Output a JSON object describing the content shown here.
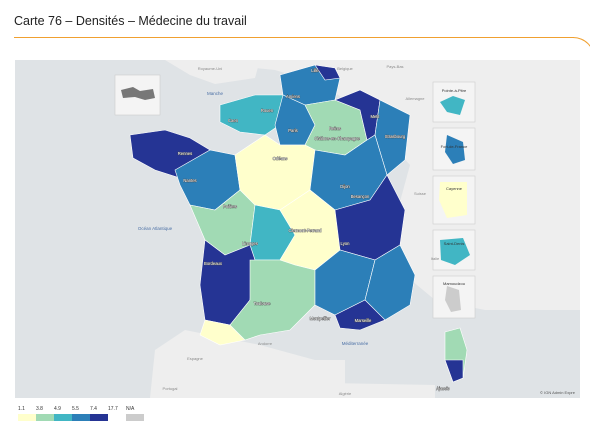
{
  "page": {
    "title": "Carte 76 – Densités – Médecine du travail"
  },
  "map": {
    "copyright": "© IGN Admin Expre",
    "seas": {
      "manche": "Manche",
      "ocean": "Océan Atlantique",
      "med": "Méditerranée"
    },
    "countries": [
      "Royaume-Uni",
      "Belgique",
      "Pays-Bas",
      "Allemagne",
      "Suisse",
      "Italie",
      "Espagne",
      "Andorre",
      "Portugal",
      "Algérie"
    ],
    "cities": [
      "Lille",
      "Amiens",
      "Rouen",
      "Caen",
      "Paris",
      "Reims",
      "Châlons-en-Champagne",
      "Metz",
      "Strasbourg",
      "Rennes",
      "Nantes",
      "Orléans",
      "Dijon",
      "Besançon",
      "Poitiers",
      "Limoges",
      "Clermont-Ferrand",
      "Lyon",
      "Bordeaux",
      "Toulouse",
      "Montpellier",
      "Marseille",
      "Ajaccio"
    ],
    "insets": [
      {
        "label": "Pointe-à-Pitre"
      },
      {
        "label": "Fort-de-France"
      },
      {
        "label": "Cayenne"
      },
      {
        "label": "Saint-Denis"
      },
      {
        "label": "Mamoudzou"
      }
    ],
    "palette": {
      "c1": "#ffffcc",
      "c2": "#a1dab4",
      "c3": "#41b6c4",
      "c4": "#2c7fb8",
      "c5": "#253494",
      "na": "#cccccc",
      "background": "#dfe3e6",
      "land": "#eeeeee"
    }
  },
  "legend": {
    "labels": [
      "1.1",
      "3.8",
      "4.9",
      "5.5",
      "7.4",
      "17.7",
      "N/A"
    ],
    "colors": [
      "#ffffcc",
      "#a1dab4",
      "#41b6c4",
      "#2c7fb8",
      "#253494",
      "#cccccc"
    ]
  }
}
